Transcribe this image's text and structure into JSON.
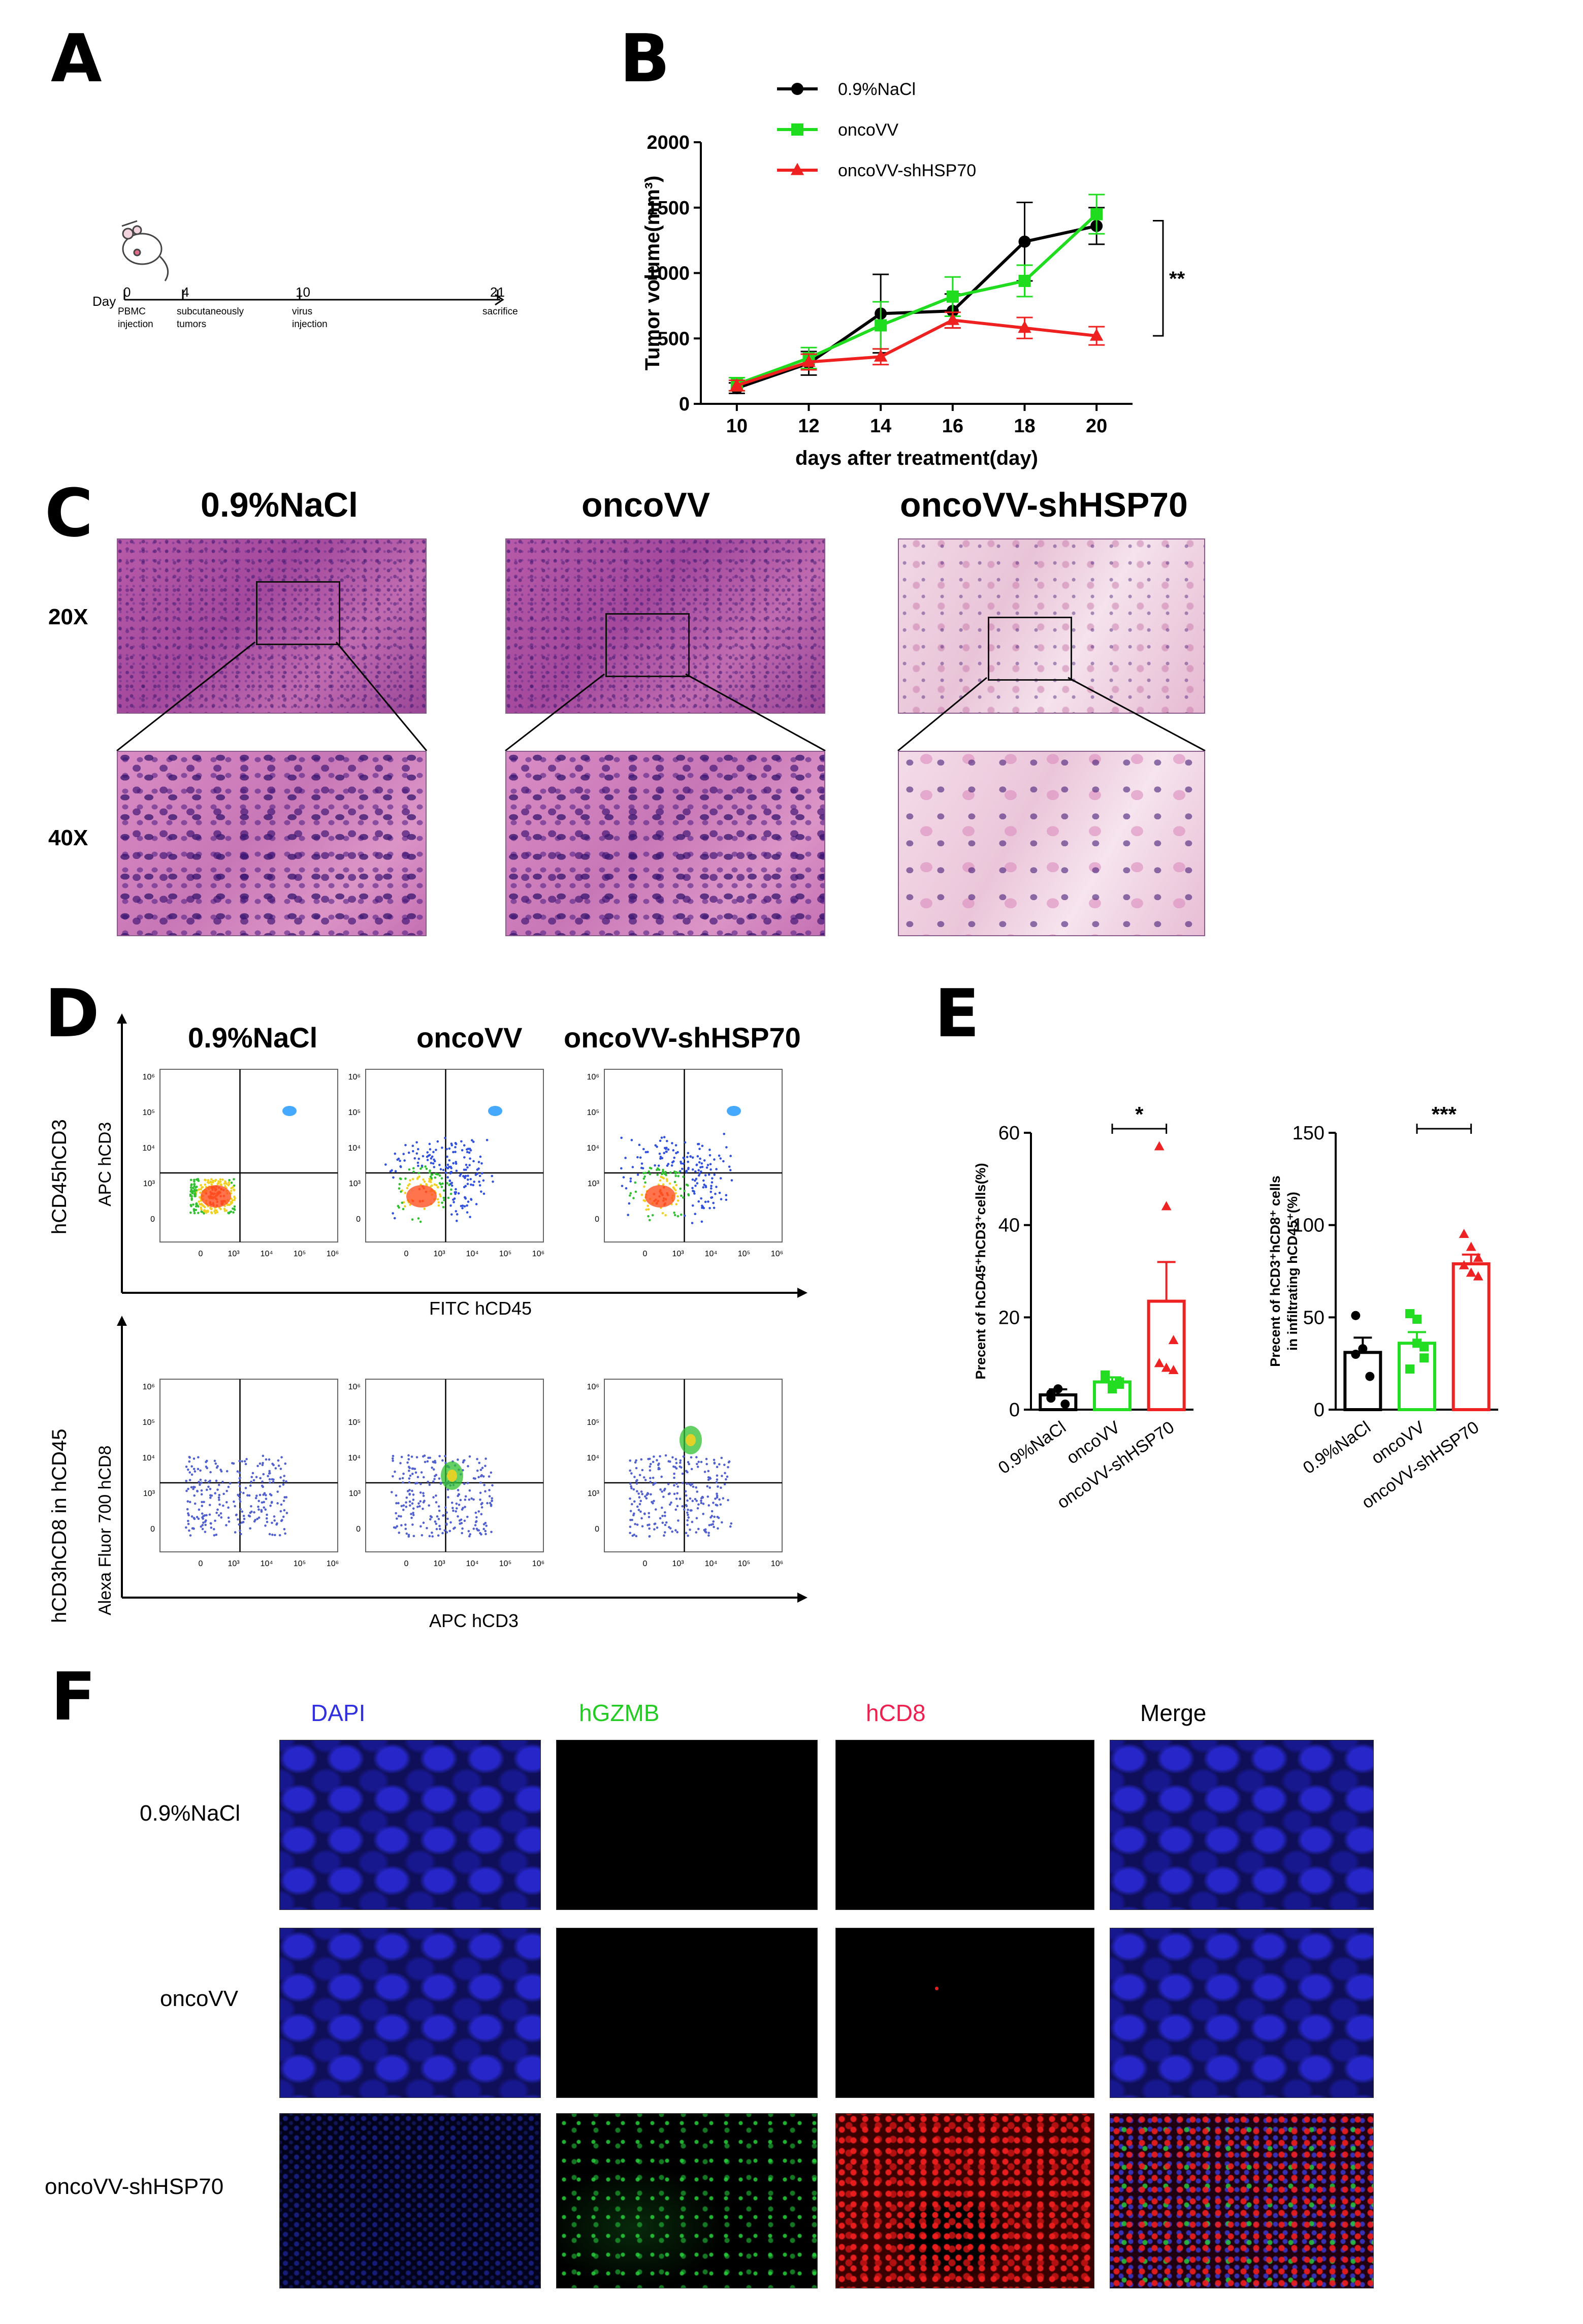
{
  "panels": {
    "A": "A",
    "B": "B",
    "C": "C",
    "D": "D",
    "E": "E",
    "F": "F"
  },
  "panelA": {
    "day_label": "Day",
    "ticks": [
      {
        "num": "0",
        "label": "PBMC\ninjection"
      },
      {
        "num": "4",
        "label": "subcutaneously\ntumors"
      },
      {
        "num": "10",
        "label": "virus\ninjection"
      },
      {
        "num": "21",
        "label": "sacrifice"
      }
    ]
  },
  "chart_data": [
    {
      "panel": "B",
      "type": "line",
      "xlabel": "days after treatment(day)",
      "ylabel": "Tumor volume(mm³)",
      "x": [
        10,
        12,
        14,
        16,
        18,
        20
      ],
      "xlim": [
        9,
        21
      ],
      "ylim": [
        0,
        2000
      ],
      "yticks": [
        0,
        500,
        1000,
        1500,
        2000
      ],
      "xticks": [
        10,
        12,
        14,
        16,
        18,
        20
      ],
      "legend_position": "top",
      "series": [
        {
          "name": "0.9%NaCl",
          "color": "#000000",
          "marker": "circle",
          "values": [
            120,
            310,
            690,
            710,
            1240,
            1360
          ],
          "errors": [
            40,
            90,
            300,
            130,
            300,
            140
          ]
        },
        {
          "name": "oncoVV",
          "color": "#1fdc1f",
          "marker": "square",
          "values": [
            150,
            350,
            600,
            820,
            940,
            1450
          ],
          "errors": [
            50,
            80,
            180,
            150,
            120,
            150
          ]
        },
        {
          "name": "oncoVV-shHSP70",
          "color": "#ef2020",
          "marker": "triangle",
          "values": [
            140,
            320,
            360,
            640,
            580,
            520
          ],
          "errors": [
            40,
            60,
            60,
            60,
            80,
            70
          ]
        }
      ],
      "annotation": "**"
    },
    {
      "panel": "E-left",
      "type": "bar",
      "categories": [
        "0.9%NaCl",
        "oncoVV",
        "oncoVV-shHSP70"
      ],
      "values": [
        3.2,
        6.0,
        23.5
      ],
      "errors": [
        1.2,
        1.0,
        8.5
      ],
      "points": [
        [
          2.5,
          4.5,
          1.2,
          3.5
        ],
        [
          7.0,
          5.0,
          6.0,
          7.5,
          4.5,
          5.5
        ],
        [
          57.0,
          44.0,
          15.0,
          10.0,
          9.0,
          8.5
        ]
      ],
      "colors": [
        "#000000",
        "#22dd22",
        "#ee2222"
      ],
      "ylabel": "Precent of hCD45⁺hCD3⁺cells(%)",
      "ylim": [
        0,
        60
      ],
      "yticks": [
        0,
        20,
        40,
        60
      ],
      "significance": "*"
    },
    {
      "panel": "E-right",
      "type": "bar",
      "categories": [
        "0.9%NaCl",
        "oncoVV",
        "oncoVV-shHSP70"
      ],
      "values": [
        31,
        36,
        79
      ],
      "errors": [
        8,
        6,
        5
      ],
      "points": [
        [
          51,
          33,
          18,
          30
        ],
        [
          52,
          49,
          28,
          22,
          36,
          34
        ],
        [
          95,
          88,
          82,
          78,
          74,
          72
        ]
      ],
      "colors": [
        "#000000",
        "#22dd22",
        "#ee2222"
      ],
      "ylabel_line1": "Precent of hCD3⁺hCD8⁺ cells",
      "ylabel_line2": "in infiltrating hCD45⁺(%)",
      "ylim": [
        0,
        150
      ],
      "yticks": [
        0,
        50,
        100,
        150
      ],
      "significance": "***"
    }
  ],
  "panelC": {
    "groups": [
      "0.9%NaCl",
      "oncoVV",
      "oncoVV-shHSP70"
    ],
    "rows": [
      "20X",
      "40X"
    ]
  },
  "panelD": {
    "groups": [
      "0.9%NaCl",
      "oncoVV",
      "oncoVV-shHSP70"
    ],
    "top": {
      "side_label": "hCD45hCD3",
      "ylabel": "APC hCD3",
      "xlabel": "FITC hCD45"
    },
    "bottom": {
      "side_label": "hCD3hCD8 in hCD45",
      "ylabel": "Alexa Fluor 700 hCD8",
      "xlabel": "APC hCD3"
    },
    "y_ticks": [
      "10⁶",
      "10⁵",
      "10⁴",
      "10³",
      "0"
    ],
    "x_ticks": [
      "0",
      "10³",
      "10⁴",
      "10⁵",
      "10⁶"
    ]
  },
  "panelF": {
    "channels": [
      {
        "label": "DAPI",
        "color": "#3030e0"
      },
      {
        "label": "hGZMB",
        "color": "#22cc22"
      },
      {
        "label": "hCD8",
        "color": "#ee2050"
      },
      {
        "label": "Merge",
        "color": "#000000"
      }
    ],
    "rows": [
      "0.9%NaCl",
      "oncoVV",
      "oncoVV-shHSP70"
    ]
  }
}
